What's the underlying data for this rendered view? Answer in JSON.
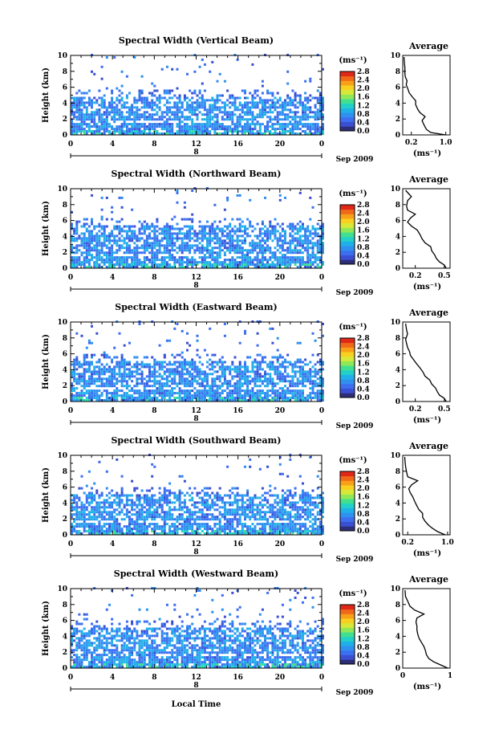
{
  "figure": {
    "xlabel": "Local Time",
    "date_label": "Sep 2009",
    "day_label": "8",
    "unit_label": "(ms⁻¹)",
    "avg_title": "Average",
    "avg_xlabel": "(ms⁻¹)",
    "ylabel": "Height (km)"
  },
  "colorbar": {
    "ticks": [
      "2.8",
      "2.4",
      "2.0",
      "1.6",
      "1.2",
      "0.8",
      "0.4",
      "0.0"
    ],
    "range": [
      0,
      2.8
    ],
    "colors": [
      "#2e2e78",
      "#3a4fd2",
      "#3c6ef0",
      "#2f90f0",
      "#20b0e8",
      "#22d0c8",
      "#40e090",
      "#90e858",
      "#d8e838",
      "#f8d020",
      "#f8a018",
      "#f06818",
      "#e02818"
    ]
  },
  "chart_data": [
    {
      "type": "heatmap",
      "title": "Spectral Width (Vertical Beam)",
      "x_ticks": [
        "0",
        "4",
        "8",
        "12",
        "16",
        "20",
        "0"
      ],
      "xlim": [
        0,
        24
      ],
      "y_ticks": [
        "0",
        "2",
        "4",
        "6",
        "8",
        "10"
      ],
      "ylim": [
        0,
        10
      ],
      "clim": [
        0,
        2.8
      ],
      "echo_top_km": 4.6,
      "avg": {
        "x_ticks": [
          "0.2",
          "1.0"
        ],
        "xlim": [
          0,
          1.1
        ],
        "tick_values": [
          0.2,
          1.0
        ],
        "profile": [
          [
            0,
            1.0
          ],
          [
            0.3,
            0.65
          ],
          [
            0.7,
            0.55
          ],
          [
            1.2,
            0.5
          ],
          [
            1.8,
            0.45
          ],
          [
            2.3,
            0.52
          ],
          [
            2.8,
            0.4
          ],
          [
            3.2,
            0.35
          ],
          [
            3.8,
            0.3
          ],
          [
            4.3,
            0.3
          ],
          [
            4.8,
            0.22
          ],
          [
            5.3,
            0.15
          ],
          [
            5.8,
            0.12
          ],
          [
            6.3,
            0.08
          ],
          [
            6.8,
            0.1
          ],
          [
            7.3,
            0.06
          ],
          [
            7.8,
            0.05
          ],
          [
            8.5,
            0.05
          ],
          [
            9.0,
            0.04
          ],
          [
            9.8,
            0.03
          ]
        ]
      }
    },
    {
      "type": "heatmap",
      "title": "Spectral Width (Northward Beam)",
      "x_ticks": [
        "0",
        "4",
        "8",
        "12",
        "16",
        "20",
        "0"
      ],
      "xlim": [
        0,
        24
      ],
      "y_ticks": [
        "0",
        "2",
        "4",
        "6",
        "8",
        "10"
      ],
      "ylim": [
        0,
        10
      ],
      "clim": [
        0,
        2.8
      ],
      "echo_top_km": 5.2,
      "avg": {
        "x_ticks": [
          "0.2",
          "0.5"
        ],
        "xlim": [
          0.07,
          0.56
        ],
        "tick_values": [
          0.2,
          0.5
        ],
        "profile": [
          [
            0,
            0.52
          ],
          [
            0.4,
            0.5
          ],
          [
            0.8,
            0.45
          ],
          [
            1.2,
            0.42
          ],
          [
            1.7,
            0.4
          ],
          [
            2.2,
            0.37
          ],
          [
            2.7,
            0.36
          ],
          [
            3.2,
            0.3
          ],
          [
            3.7,
            0.27
          ],
          [
            4.2,
            0.25
          ],
          [
            4.8,
            0.22
          ],
          [
            5.3,
            0.16
          ],
          [
            5.8,
            0.12
          ],
          [
            6.3,
            0.15
          ],
          [
            6.8,
            0.2
          ],
          [
            7.3,
            0.12
          ],
          [
            7.8,
            0.11
          ],
          [
            8.5,
            0.12
          ],
          [
            9.0,
            0.16
          ],
          [
            9.8,
            0.1
          ]
        ]
      }
    },
    {
      "type": "heatmap",
      "title": "Spectral Width (Eastward Beam)",
      "x_ticks": [
        "0",
        "4",
        "8",
        "12",
        "16",
        "20",
        "0"
      ],
      "xlim": [
        0,
        24
      ],
      "y_ticks": [
        "0",
        "2",
        "4",
        "6",
        "8",
        "10"
      ],
      "ylim": [
        0,
        10
      ],
      "clim": [
        0,
        2.8
      ],
      "echo_top_km": 5.0,
      "avg": {
        "x_ticks": [
          "0.2",
          "0.5"
        ],
        "xlim": [
          0.07,
          0.56
        ],
        "tick_values": [
          0.2,
          0.5
        ],
        "profile": [
          [
            0,
            0.52
          ],
          [
            0.4,
            0.5
          ],
          [
            0.8,
            0.45
          ],
          [
            1.2,
            0.43
          ],
          [
            1.7,
            0.41
          ],
          [
            2.2,
            0.37
          ],
          [
            2.7,
            0.35
          ],
          [
            3.2,
            0.3
          ],
          [
            3.7,
            0.28
          ],
          [
            4.2,
            0.25
          ],
          [
            4.8,
            0.21
          ],
          [
            5.3,
            0.18
          ],
          [
            5.8,
            0.15
          ],
          [
            6.3,
            0.14
          ],
          [
            6.8,
            0.12
          ],
          [
            7.3,
            0.11
          ],
          [
            7.8,
            0.1
          ],
          [
            8.5,
            0.12
          ],
          [
            9.0,
            0.11
          ],
          [
            9.8,
            0.1
          ]
        ]
      }
    },
    {
      "type": "heatmap",
      "title": "Spectral Width (Southward Beam)",
      "x_ticks": [
        "0",
        "4",
        "8",
        "12",
        "16",
        "20",
        "0"
      ],
      "xlim": [
        0,
        24
      ],
      "y_ticks": [
        "0",
        "2",
        "4",
        "6",
        "8",
        "10"
      ],
      "ylim": [
        0,
        10
      ],
      "clim": [
        0,
        2.8
      ],
      "echo_top_km": 5.0,
      "avg": {
        "x_ticks": [
          "0.2",
          "1.0"
        ],
        "xlim": [
          0.1,
          1.05
        ],
        "tick_values": [
          0.2,
          1.0
        ],
        "profile": [
          [
            0,
            0.95
          ],
          [
            0.4,
            0.8
          ],
          [
            0.8,
            0.7
          ],
          [
            1.2,
            0.62
          ],
          [
            1.7,
            0.55
          ],
          [
            2.2,
            0.5
          ],
          [
            2.7,
            0.5
          ],
          [
            3.2,
            0.42
          ],
          [
            3.7,
            0.38
          ],
          [
            4.2,
            0.34
          ],
          [
            4.8,
            0.3
          ],
          [
            5.3,
            0.25
          ],
          [
            5.8,
            0.22
          ],
          [
            6.3,
            0.28
          ],
          [
            6.8,
            0.4
          ],
          [
            7.3,
            0.2
          ],
          [
            7.8,
            0.18
          ],
          [
            8.5,
            0.16
          ],
          [
            9.0,
            0.15
          ],
          [
            9.8,
            0.14
          ]
        ]
      }
    },
    {
      "type": "heatmap",
      "title": "Spectral Width (Westward Beam)",
      "x_ticks": [
        "0",
        "4",
        "8",
        "12",
        "16",
        "20",
        "0"
      ],
      "xlim": [
        0,
        24
      ],
      "y_ticks": [
        "0",
        "2",
        "4",
        "6",
        "8",
        "10"
      ],
      "ylim": [
        0,
        10
      ],
      "clim": [
        0,
        2.8
      ],
      "echo_top_km": 5.0,
      "avg": {
        "x_ticks": [
          "0",
          "1"
        ],
        "xlim": [
          0,
          1
        ],
        "tick_values": [
          0,
          1
        ],
        "profile": [
          [
            0,
            0.95
          ],
          [
            0.4,
            0.8
          ],
          [
            0.8,
            0.65
          ],
          [
            1.2,
            0.55
          ],
          [
            1.7,
            0.5
          ],
          [
            2.2,
            0.48
          ],
          [
            2.7,
            0.45
          ],
          [
            3.2,
            0.4
          ],
          [
            3.7,
            0.35
          ],
          [
            4.2,
            0.32
          ],
          [
            4.8,
            0.3
          ],
          [
            5.3,
            0.3
          ],
          [
            5.8,
            0.28
          ],
          [
            6.3,
            0.3
          ],
          [
            6.8,
            0.45
          ],
          [
            7.3,
            0.25
          ],
          [
            7.8,
            0.15
          ],
          [
            8.5,
            0.1
          ],
          [
            9.0,
            0.06
          ],
          [
            9.8,
            0.05
          ]
        ]
      }
    }
  ]
}
